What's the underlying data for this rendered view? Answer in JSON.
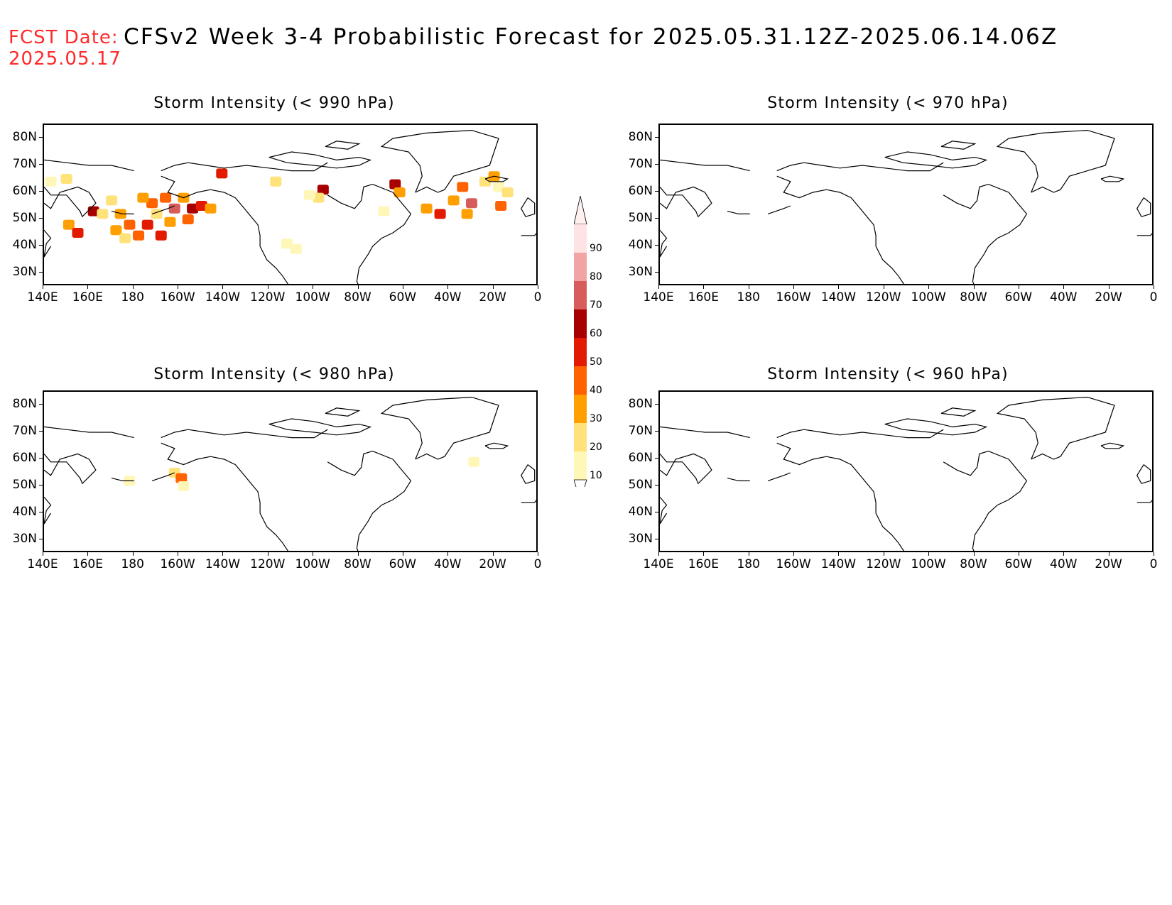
{
  "header": {
    "fcst_label": "FCST Date:",
    "fcst_date": "2025.05.17",
    "title": "CFSv2 Week 3-4 Probabilistic Forecast for 2025.05.31.12Z-2025.06.14.06Z"
  },
  "panels": [
    {
      "title": "Storm Intensity (< 990 hPa)"
    },
    {
      "title": "Storm Intensity (< 970 hPa)"
    },
    {
      "title": "Storm Intensity (< 980 hPa)"
    },
    {
      "title": "Storm Intensity (< 960 hPa)"
    }
  ],
  "axes": {
    "lat_labels": [
      "80N",
      "70N",
      "60N",
      "50N",
      "40N",
      "30N"
    ],
    "lon_labels": [
      "140E",
      "160E",
      "180",
      "160W",
      "140W",
      "120W",
      "100W",
      "80W",
      "60W",
      "40W",
      "20W",
      "0"
    ]
  },
  "colorbar": {
    "labels": [
      "90",
      "80",
      "70",
      "60",
      "50",
      "40",
      "30",
      "20",
      "10"
    ],
    "colors": [
      "#fde3e3",
      "#f2a3a3",
      "#d75d5d",
      "#a80000",
      "#e11a00",
      "#ff6200",
      "#ff9f00",
      "#ffe27a",
      "#fff7b8"
    ]
  },
  "chart_data": {
    "type": "heatmap",
    "x_range": [
      140,
      360
    ],
    "y_range": [
      25,
      85
    ],
    "legend_placement": "center",
    "level_colors": {
      "10": "#fff7b8",
      "20": "#ffe27a",
      "30": "#ff9f00",
      "40": "#ff6200",
      "50": "#e11a00",
      "60": "#a80000",
      "70": "#d75d5d",
      "80": "#f2a3a3",
      "90": "#fde3e3"
    },
    "fields": [
      {
        "panel": 0,
        "cells": [
          {
            "lon": 143,
            "lat": 64,
            "lvl": 10
          },
          {
            "lon": 150,
            "lat": 65,
            "lvl": 20
          },
          {
            "lon": 151,
            "lat": 48,
            "lvl": 30
          },
          {
            "lon": 155,
            "lat": 45,
            "lvl": 50
          },
          {
            "lon": 162,
            "lat": 53,
            "lvl": 60
          },
          {
            "lon": 166,
            "lat": 52,
            "lvl": 20
          },
          {
            "lon": 170,
            "lat": 57,
            "lvl": 20
          },
          {
            "lon": 174,
            "lat": 52,
            "lvl": 30
          },
          {
            "lon": 178,
            "lat": 48,
            "lvl": 40
          },
          {
            "lon": 172,
            "lat": 46,
            "lvl": 30
          },
          {
            "lon": 176,
            "lat": 43,
            "lvl": 20
          },
          {
            "lon": 182,
            "lat": 44,
            "lvl": 40
          },
          {
            "lon": 186,
            "lat": 48,
            "lvl": 50
          },
          {
            "lon": 188,
            "lat": 56,
            "lvl": 40
          },
          {
            "lon": 184,
            "lat": 58,
            "lvl": 30
          },
          {
            "lon": 194,
            "lat": 58,
            "lvl": 40
          },
          {
            "lon": 198,
            "lat": 54,
            "lvl": 70
          },
          {
            "lon": 196,
            "lat": 49,
            "lvl": 30
          },
          {
            "lon": 190,
            "lat": 52,
            "lvl": 20
          },
          {
            "lon": 192,
            "lat": 44,
            "lvl": 50
          },
          {
            "lon": 202,
            "lat": 58,
            "lvl": 30
          },
          {
            "lon": 206,
            "lat": 54,
            "lvl": 60
          },
          {
            "lon": 210,
            "lat": 55,
            "lvl": 50
          },
          {
            "lon": 204,
            "lat": 50,
            "lvl": 40
          },
          {
            "lon": 214,
            "lat": 54,
            "lvl": 30
          },
          {
            "lon": 219,
            "lat": 67,
            "lvl": 50
          },
          {
            "lon": 243,
            "lat": 64,
            "lvl": 20
          },
          {
            "lon": 264,
            "lat": 61,
            "lvl": 60
          },
          {
            "lon": 262,
            "lat": 58,
            "lvl": 20
          },
          {
            "lon": 258,
            "lat": 59,
            "lvl": 10
          },
          {
            "lon": 248,
            "lat": 41,
            "lvl": 10
          },
          {
            "lon": 252,
            "lat": 39,
            "lvl": 10
          },
          {
            "lon": 296,
            "lat": 63,
            "lvl": 60
          },
          {
            "lon": 298,
            "lat": 60,
            "lvl": 30
          },
          {
            "lon": 291,
            "lat": 53,
            "lvl": 10
          },
          {
            "lon": 310,
            "lat": 54,
            "lvl": 30
          },
          {
            "lon": 316,
            "lat": 52,
            "lvl": 50
          },
          {
            "lon": 322,
            "lat": 57,
            "lvl": 30
          },
          {
            "lon": 326,
            "lat": 62,
            "lvl": 40
          },
          {
            "lon": 330,
            "lat": 56,
            "lvl": 70
          },
          {
            "lon": 328,
            "lat": 52,
            "lvl": 30
          },
          {
            "lon": 336,
            "lat": 64,
            "lvl": 20
          },
          {
            "lon": 340,
            "lat": 66,
            "lvl": 30
          },
          {
            "lon": 342,
            "lat": 62,
            "lvl": 10
          },
          {
            "lon": 343,
            "lat": 55,
            "lvl": 40
          },
          {
            "lon": 346,
            "lat": 60,
            "lvl": 20
          }
        ]
      },
      {
        "panel": 1,
        "cells": []
      },
      {
        "panel": 2,
        "cells": [
          {
            "lon": 178,
            "lat": 52,
            "lvl": 10
          },
          {
            "lon": 198,
            "lat": 55,
            "lvl": 20
          },
          {
            "lon": 201,
            "lat": 53,
            "lvl": 40
          },
          {
            "lon": 202,
            "lat": 50,
            "lvl": 10
          },
          {
            "lon": 331,
            "lat": 59,
            "lvl": 10
          }
        ]
      },
      {
        "panel": 3,
        "cells": []
      }
    ]
  }
}
